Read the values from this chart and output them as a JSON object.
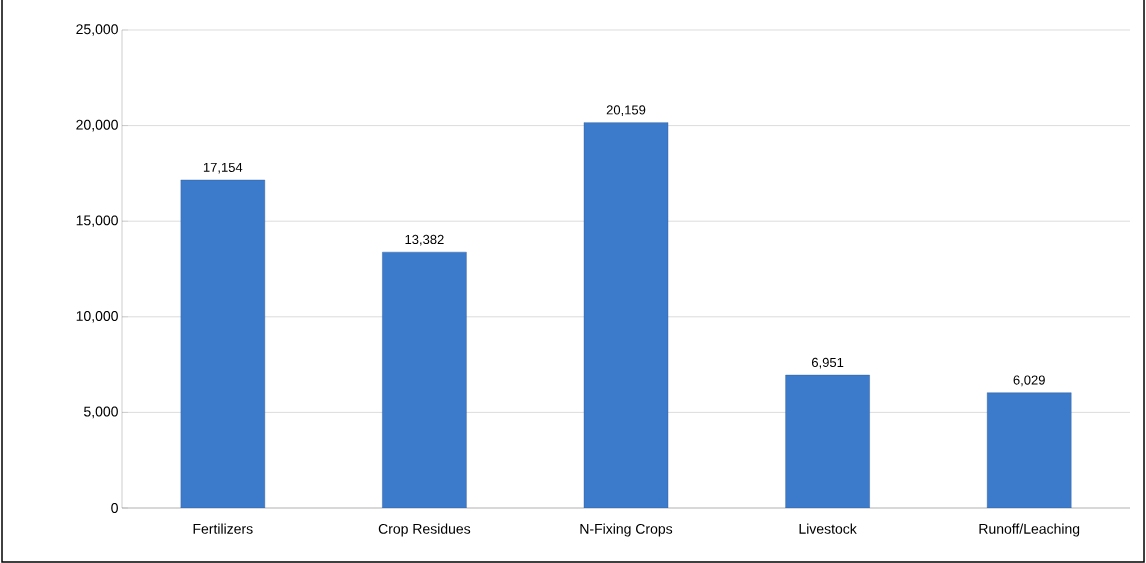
{
  "chart_data": {
    "type": "bar",
    "categories": [
      "Fertilizers",
      "Crop Residues",
      "N-Fixing Crops",
      "Livestock",
      "Runoff/Leaching"
    ],
    "values": [
      17154,
      13382,
      20159,
      6951,
      6029
    ],
    "value_labels": [
      "17,154",
      "13,382",
      "20,159",
      "6,951",
      "6,029"
    ],
    "color": "#3c7bcc",
    "ylim": [
      0,
      25000
    ],
    "yticks": [
      {
        "value": 0,
        "label": "0"
      },
      {
        "value": 5000,
        "label": "5,000"
      },
      {
        "value": 10000,
        "label": "10,000"
      },
      {
        "value": 15000,
        "label": "15,000"
      },
      {
        "value": 20000,
        "label": "20,000"
      },
      {
        "value": 25000,
        "label": "25,000"
      }
    ],
    "grid": "y"
  }
}
